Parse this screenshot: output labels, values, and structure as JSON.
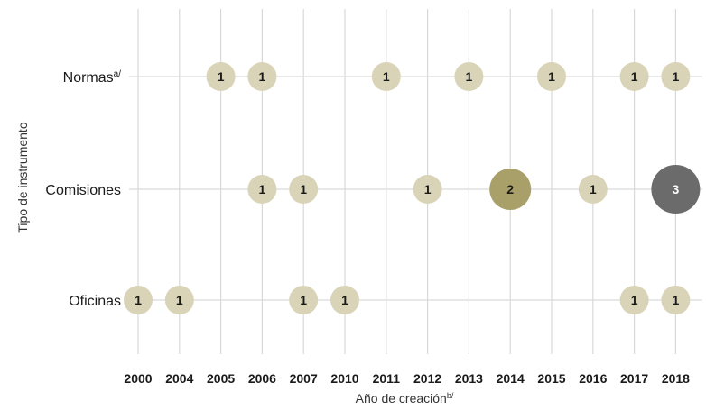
{
  "chart_data": {
    "type": "scatter",
    "title": "",
    "xlabel": "Año de creación",
    "xlabel_sup": "b/",
    "ylabel": "Tipo de instrumento",
    "x_categories": [
      "2000",
      "2004",
      "2005",
      "2006",
      "2007",
      "2010",
      "2011",
      "2012",
      "2013",
      "2014",
      "2015",
      "2016",
      "2017",
      "2018"
    ],
    "y_categories": [
      {
        "label": "Normas",
        "sup": "a/"
      },
      {
        "label": "Comisiones",
        "sup": ""
      },
      {
        "label": "Oficinas",
        "sup": ""
      }
    ],
    "points": [
      {
        "x": "2005",
        "y": "Normas",
        "value": 1
      },
      {
        "x": "2006",
        "y": "Normas",
        "value": 1
      },
      {
        "x": "2011",
        "y": "Normas",
        "value": 1
      },
      {
        "x": "2013",
        "y": "Normas",
        "value": 1
      },
      {
        "x": "2015",
        "y": "Normas",
        "value": 1
      },
      {
        "x": "2017",
        "y": "Normas",
        "value": 1
      },
      {
        "x": "2018",
        "y": "Normas",
        "value": 1
      },
      {
        "x": "2006",
        "y": "Comisiones",
        "value": 1
      },
      {
        "x": "2007",
        "y": "Comisiones",
        "value": 1
      },
      {
        "x": "2012",
        "y": "Comisiones",
        "value": 1
      },
      {
        "x": "2014",
        "y": "Comisiones",
        "value": 2
      },
      {
        "x": "2016",
        "y": "Comisiones",
        "value": 1
      },
      {
        "x": "2018",
        "y": "Comisiones",
        "value": 3
      },
      {
        "x": "2000",
        "y": "Oficinas",
        "value": 1
      },
      {
        "x": "2004",
        "y": "Oficinas",
        "value": 1
      },
      {
        "x": "2007",
        "y": "Oficinas",
        "value": 1
      },
      {
        "x": "2010",
        "y": "Oficinas",
        "value": 1
      },
      {
        "x": "2017",
        "y": "Oficinas",
        "value": 1
      },
      {
        "x": "2018",
        "y": "Oficinas",
        "value": 1
      }
    ],
    "colors": {
      "1": "#d9d4b8",
      "2": "#a8a068",
      "3": "#6b6b6b"
    },
    "label_colors": {
      "1": "#1a1a1a",
      "2": "#1a1a1a",
      "3": "#ffffff"
    },
    "grid_color": "#d9d9d9",
    "grid": true
  }
}
